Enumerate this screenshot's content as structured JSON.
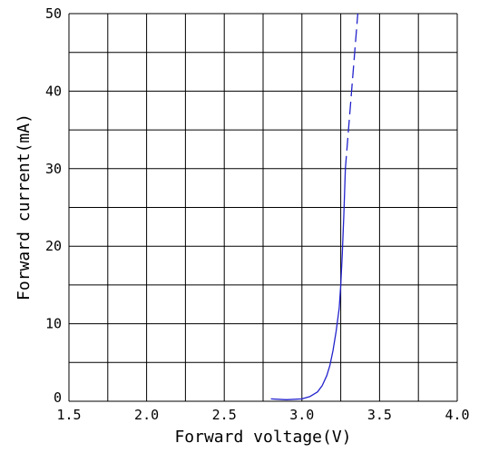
{
  "chart_data": {
    "type": "line",
    "title": "",
    "xlabel": "Forward voltage(V)",
    "ylabel": "Forward current(mA)",
    "xlim": [
      1.5,
      4.0
    ],
    "ylim": [
      0,
      50
    ],
    "x_ticks": [
      1.5,
      2.0,
      2.5,
      3.0,
      3.5,
      4.0
    ],
    "x_tick_labels": [
      "1.5",
      "2.0",
      "2.5",
      "3.0",
      "3.5",
      "4.0"
    ],
    "y_ticks": [
      0,
      10,
      20,
      30,
      40,
      50
    ],
    "y_tick_labels": [
      "0",
      "10",
      "20",
      "30",
      "40",
      "50"
    ],
    "grid": true,
    "grid_x_step": 0.25,
    "grid_y_step": 5,
    "line_color": "#2222cc",
    "series": [
      {
        "style": "solid",
        "x": [
          2.8,
          2.9,
          3.0,
          3.05,
          3.1,
          3.13,
          3.16,
          3.18,
          3.2,
          3.22,
          3.24,
          3.25,
          3.26,
          3.27,
          3.28
        ],
        "y": [
          0.3,
          0.2,
          0.3,
          0.6,
          1.2,
          2.0,
          3.3,
          4.6,
          6.5,
          9.0,
          12.0,
          15.0,
          19.0,
          24.0,
          30.0
        ]
      },
      {
        "style": "dashed",
        "x": [
          3.28,
          3.36
        ],
        "y": [
          30.0,
          50.0
        ]
      }
    ]
  }
}
